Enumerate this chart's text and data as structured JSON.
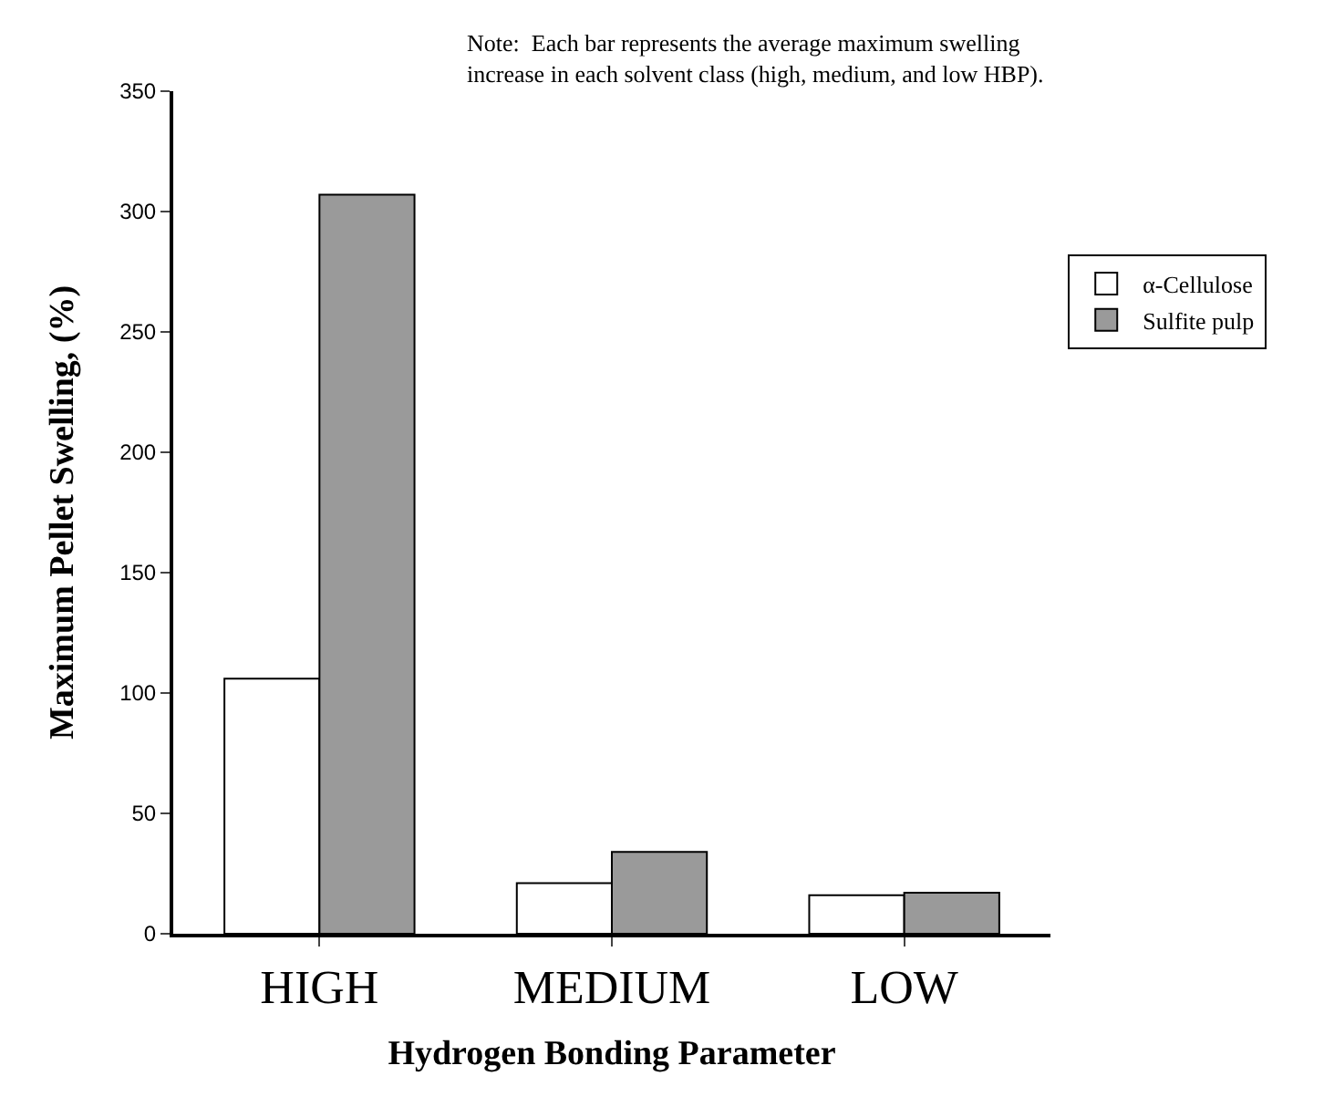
{
  "chart_data": {
    "type": "bar",
    "xlabel": "Hydrogen Bonding Parameter",
    "ylabel": "Maximum Pellet Swelling, (%)",
    "annotations": [
      "Note:  Each bar represents the average maximum swelling\nincrease in each solvent class (high, medium, and low HBP)."
    ],
    "categories": [
      "HIGH",
      "MEDIUM",
      "LOW"
    ],
    "series": [
      {
        "name": "α-Cellulose",
        "color": "#ffffff",
        "values": [
          106,
          21,
          16
        ]
      },
      {
        "name": "Sulfite pulp",
        "color": "#9a9a9a",
        "values": [
          307,
          34,
          17
        ]
      }
    ],
    "ylim": [
      0,
      350
    ],
    "yticks": [
      0,
      50,
      100,
      150,
      200,
      250,
      300,
      350
    ],
    "legend": "right"
  }
}
